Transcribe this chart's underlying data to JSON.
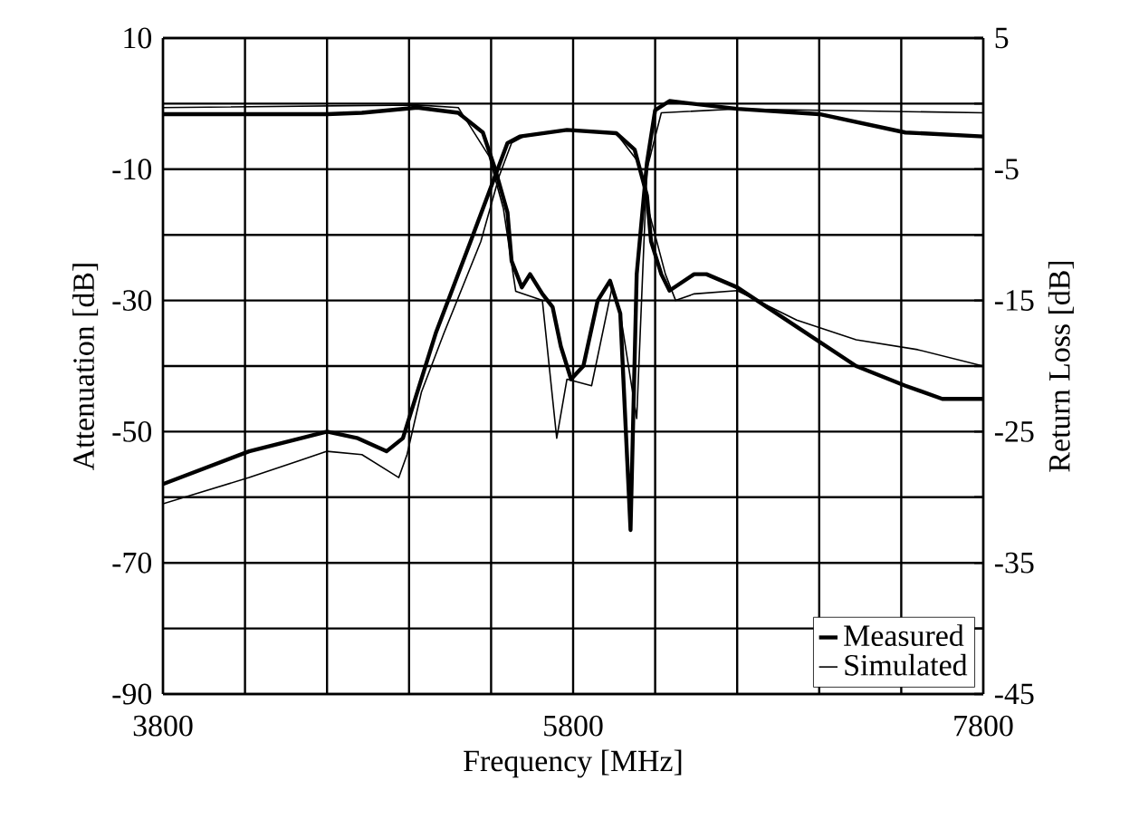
{
  "chart_data": {
    "type": "line",
    "xlabel": "Frequency [MHz]",
    "ylabel": "Attenuation [dB]",
    "y2label": "Return Loss [dB]",
    "xlim": [
      3800,
      7800
    ],
    "ylim": [
      -90,
      10
    ],
    "y2lim": [
      -45,
      5
    ],
    "xticks": [
      3800,
      {
        "value": 4200,
        "label": null
      },
      {
        "value": 4600,
        "label": null
      },
      {
        "value": 5000,
        "label": null
      },
      {
        "value": 5400,
        "label": null
      },
      5800,
      {
        "value": 6200,
        "label": null
      },
      {
        "value": 6600,
        "label": null
      },
      {
        "value": 7000,
        "label": null
      },
      {
        "value": 7400,
        "label": null
      },
      7800
    ],
    "yticks": [
      -90,
      {
        "value": -80,
        "label": null
      },
      -70,
      {
        "value": -60,
        "label": null
      },
      -50,
      {
        "value": -40,
        "label": null
      },
      -30,
      {
        "value": -20,
        "label": null
      },
      -10,
      {
        "value": 0,
        "label": null
      },
      10
    ],
    "y2ticks": [
      -45,
      {
        "value": -40,
        "label": null
      },
      -35,
      {
        "value": -30,
        "label": null
      },
      -25,
      {
        "value": -20,
        "label": null
      },
      -15,
      {
        "value": -10,
        "label": null
      },
      -5,
      {
        "value": 0,
        "label": null
      },
      5
    ],
    "grid": true,
    "legend": "bottom right",
    "marker": "none",
    "line_style": "solid",
    "series": [
      {
        "name": "Measured",
        "color": "#000000",
        "x": [
          3800,
          4220,
          4600,
          4750,
          4890,
          4970,
          5040,
          5130,
          5300,
          5420,
          5480,
          5540,
          5770,
          6010,
          6100,
          6160,
          6180,
          6230,
          6270,
          6390,
          6450,
          6600,
          6890,
          7180,
          7420,
          7600,
          7800
        ],
        "values": [
          -58,
          -53,
          -50,
          -51,
          -53,
          -51,
          -44,
          -35,
          -21,
          -11,
          -6,
          -5,
          -4,
          -4.5,
          -7,
          -14,
          -21,
          -26,
          -28.5,
          -26,
          -26,
          -28,
          -34,
          -40,
          -43,
          -45,
          -45
        ]
      },
      {
        "name": "Simulated",
        "color": "#000000",
        "x": [
          3800,
          4220,
          4600,
          4770,
          4950,
          4990,
          5060,
          5170,
          5350,
          5440,
          5500,
          5560,
          5770,
          6010,
          6120,
          6170,
          6250,
          6300,
          6390,
          6600,
          6890,
          7180,
          7480,
          7800
        ],
        "values": [
          -61,
          -57,
          -53,
          -53.5,
          -57,
          -53.5,
          -44,
          -35,
          -21,
          -11,
          -6,
          -5,
          -4,
          -4.5,
          -9,
          -16.5,
          -26,
          -30,
          -29,
          -28.5,
          -33,
          -36,
          -37.5,
          -40
        ]
      },
      {
        "color": "#000000",
        "axis": "y2",
        "x": [
          3800,
          4600,
          4770,
          5040,
          5240,
          5360,
          5420,
          5480,
          5500,
          5550,
          5590,
          5650,
          5700,
          5740,
          5790,
          5850,
          5920,
          5980,
          6030,
          6080,
          6110,
          6160,
          6200,
          6270,
          6600,
          7000,
          7420,
          7800
        ],
        "values": [
          -0.8,
          -0.8,
          -0.7,
          -0.3,
          -0.7,
          -2.2,
          -5,
          -8.3,
          -12,
          -14,
          -13,
          -14.5,
          -15.5,
          -18.5,
          -21,
          -20,
          -15,
          -13.5,
          -16,
          -32.5,
          -13,
          -4.5,
          -0.5,
          0.2,
          -0.4,
          -0.8,
          -2.2,
          -2.5
        ]
      },
      {
        "color": "#000000",
        "axis": "y2",
        "x": [
          3800,
          5040,
          5240,
          5390,
          5460,
          5520,
          5650,
          5720,
          5770,
          5890,
          5990,
          6030,
          6110,
          6160,
          6230,
          6600,
          7800
        ],
        "values": [
          -0.3,
          -0.1,
          -0.3,
          -4,
          -8,
          -14.3,
          -15,
          -25.5,
          -21,
          -21.5,
          -14,
          -16,
          -24,
          -5,
          -0.7,
          -0.4,
          -0.7
        ]
      }
    ]
  }
}
